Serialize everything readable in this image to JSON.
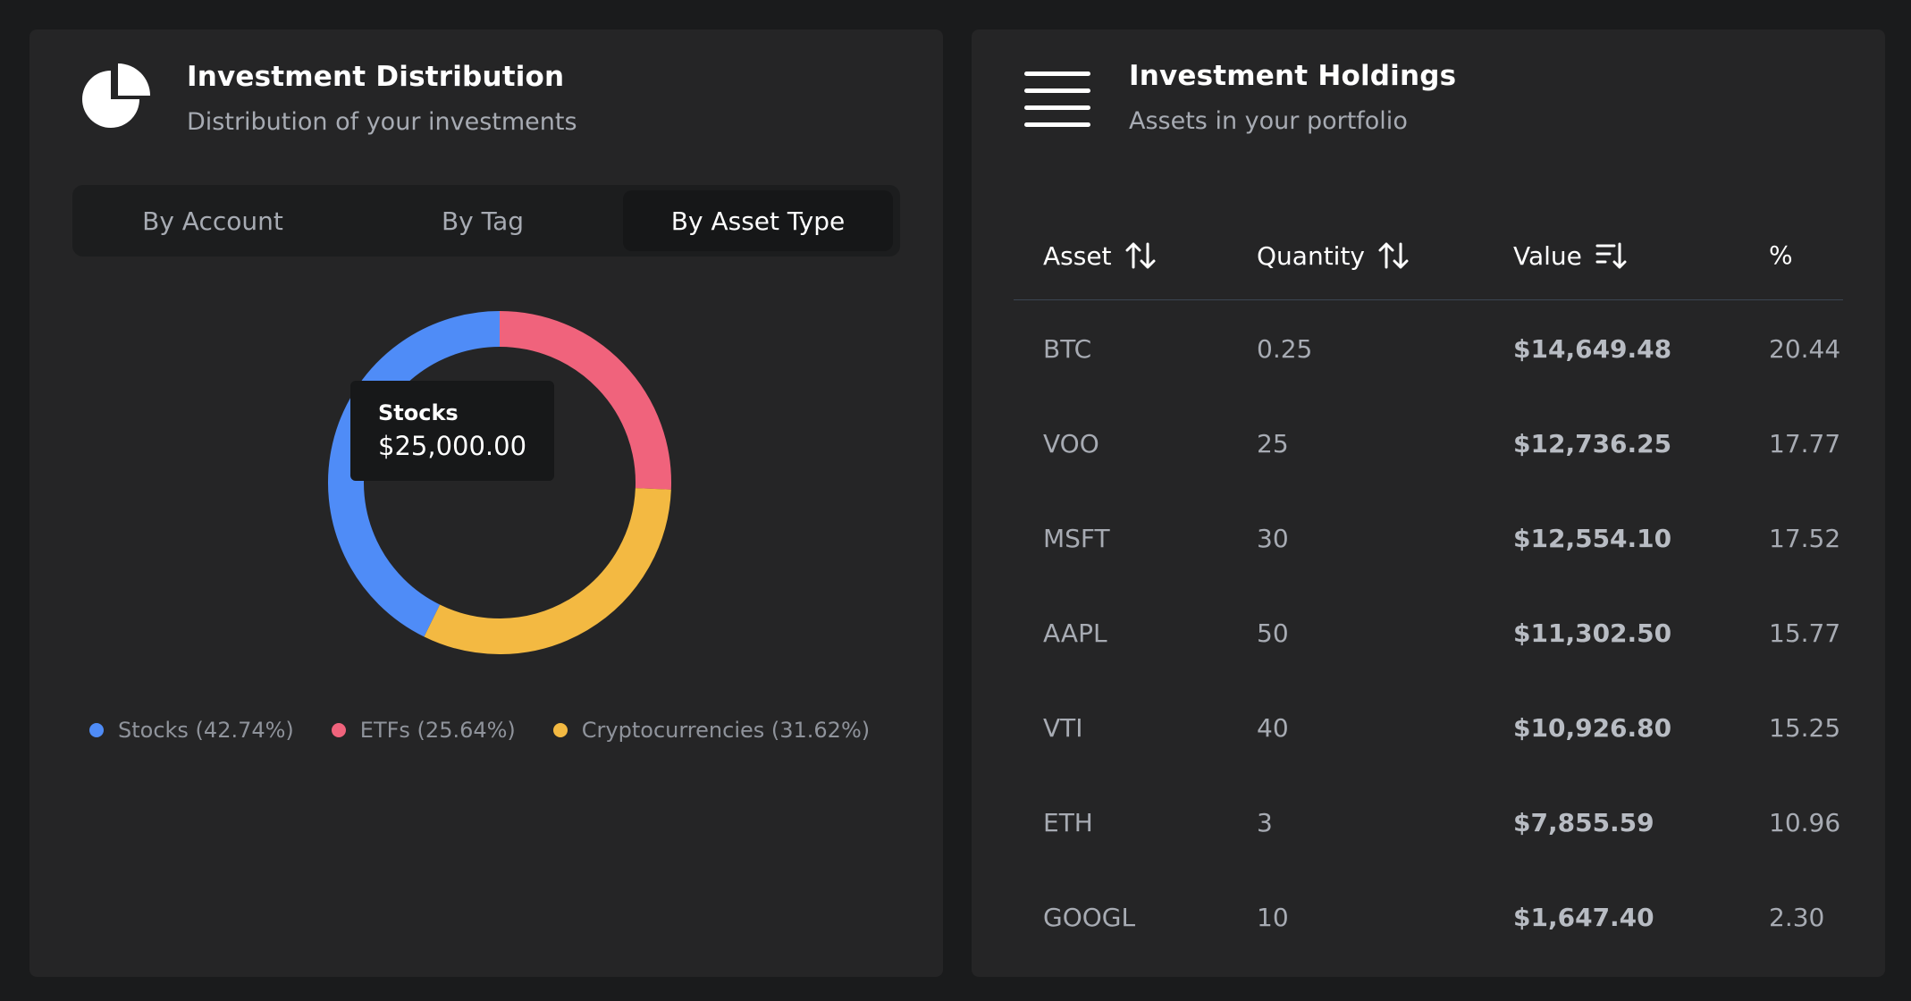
{
  "distribution": {
    "title": "Investment Distribution",
    "subtitle": "Distribution of your investments",
    "tabs": [
      {
        "label": "By Account",
        "active": false
      },
      {
        "label": "By Tag",
        "active": false
      },
      {
        "label": "By Asset Type",
        "active": true
      }
    ],
    "tooltip": {
      "label": "Stocks",
      "value": "$25,000.00"
    },
    "legend": [
      {
        "label": "Stocks (42.74%)",
        "color": "#4f8cf7"
      },
      {
        "label": "ETFs (25.64%)",
        "color": "#f0637c"
      },
      {
        "label": "Cryptocurrencies (31.62%)",
        "color": "#f3b942"
      }
    ]
  },
  "chart_data": {
    "type": "pie",
    "categories": [
      "Stocks",
      "ETFs",
      "Cryptocurrencies"
    ],
    "values": [
      42.74,
      25.64,
      31.62
    ],
    "colors": [
      "#4f8cf7",
      "#f0637c",
      "#f3b942"
    ],
    "donut": true
  },
  "holdings": {
    "title": "Investment Holdings",
    "subtitle": "Assets in your portfolio",
    "columns": [
      "Asset",
      "Quantity",
      "Value",
      "%"
    ],
    "rows": [
      {
        "asset": "BTC",
        "quantity": "0.25",
        "value": "$14,649.48",
        "pct": "20.44"
      },
      {
        "asset": "VOO",
        "quantity": "25",
        "value": "$12,736.25",
        "pct": "17.77"
      },
      {
        "asset": "MSFT",
        "quantity": "30",
        "value": "$12,554.10",
        "pct": "17.52"
      },
      {
        "asset": "AAPL",
        "quantity": "50",
        "value": "$11,302.50",
        "pct": "15.77"
      },
      {
        "asset": "VTI",
        "quantity": "40",
        "value": "$10,926.80",
        "pct": "15.25"
      },
      {
        "asset": "ETH",
        "quantity": "3",
        "value": "$7,855.59",
        "pct": "10.96"
      },
      {
        "asset": "GOOGL",
        "quantity": "10",
        "value": "$1,647.40",
        "pct": "2.30"
      }
    ]
  }
}
